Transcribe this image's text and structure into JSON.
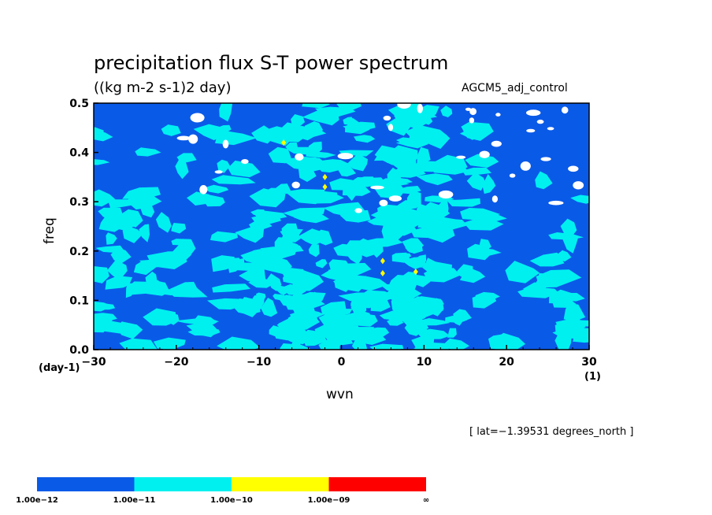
{
  "chart_data": {
    "type": "heatmap",
    "title": "precipitation flux S-T power spectrum",
    "units": "((kg m-2 s-1)2 day)",
    "dataset": "AGCM5_adj_control",
    "xlabel": "wvn",
    "ylabel": "freq",
    "x_unit": "(1)",
    "y_unit": "(day-1)",
    "xlim": [
      -30,
      30
    ],
    "ylim": [
      0.0,
      0.5
    ],
    "x_ticks": [
      "−30",
      "−20",
      "−10",
      "0",
      "10",
      "20",
      "30"
    ],
    "y_ticks": [
      "0.0",
      "0.1",
      "0.2",
      "0.3",
      "0.4",
      "0.5"
    ],
    "note": "[ lat=−1.39531 degrees_north ]",
    "colorbar": {
      "levels": [
        "1.00e−12",
        "1.00e−11",
        "1.00e−10",
        "1.00e−09",
        "∞"
      ],
      "colors": [
        "#0a5ae8",
        "#00f0f0",
        "#ffff00",
        "#ff0000"
      ]
    },
    "background_level_color": "#0a5ae8",
    "field_description_levels": {
      "white_region": "< 1.00e-12",
      "dark_blue": "1.00e-12 to 1.00e-11",
      "cyan": "1.00e-11 to 1.00e-10",
      "yellow": "1.00e-10 to 1.00e-09"
    },
    "yellow_spots": [
      {
        "wvn": -7,
        "freq": 0.42
      },
      {
        "wvn": -2,
        "freq": 0.35
      },
      {
        "wvn": -2,
        "freq": 0.33
      },
      {
        "wvn": 5,
        "freq": 0.18
      },
      {
        "wvn": 5,
        "freq": 0.155
      },
      {
        "wvn": 9,
        "freq": 0.158
      }
    ]
  }
}
